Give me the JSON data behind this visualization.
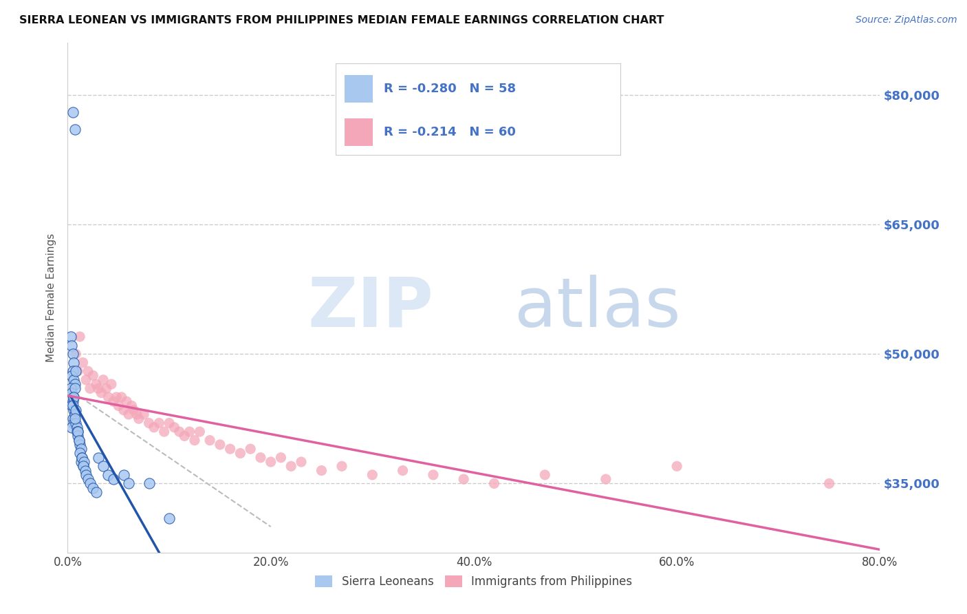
{
  "title": "SIERRA LEONEAN VS IMMIGRANTS FROM PHILIPPINES MEDIAN FEMALE EARNINGS CORRELATION CHART",
  "source": "Source: ZipAtlas.com",
  "ylabel": "Median Female Earnings",
  "xmin": 0.0,
  "xmax": 0.8,
  "ymin": 27000,
  "ymax": 86000,
  "yticks": [
    35000,
    50000,
    65000,
    80000
  ],
  "ytick_labels": [
    "$35,000",
    "$50,000",
    "$65,000",
    "$80,000"
  ],
  "xticks": [
    0.0,
    0.2,
    0.4,
    0.6,
    0.8
  ],
  "xtick_labels": [
    "0.0%",
    "20.0%",
    "40.0%",
    "60.0%",
    "80.0%"
  ],
  "sierra_color": "#a8c8f0",
  "philippines_color": "#f4a7b9",
  "sierra_line_color": "#2255aa",
  "philippines_line_color": "#e060a0",
  "sierra_R": -0.28,
  "sierra_N": 58,
  "philippines_R": -0.214,
  "philippines_N": 60,
  "legend_label_1": "Sierra Leoneans",
  "legend_label_2": "Immigrants from Philippines",
  "sierra_scatter_x": [
    0.005,
    0.007,
    0.003,
    0.004,
    0.005,
    0.006,
    0.005,
    0.004,
    0.006,
    0.007,
    0.003,
    0.004,
    0.006,
    0.005,
    0.004,
    0.006,
    0.007,
    0.005,
    0.006,
    0.004,
    0.008,
    0.007,
    0.006,
    0.005,
    0.007,
    0.008,
    0.009,
    0.01,
    0.008,
    0.007,
    0.009,
    0.01,
    0.011,
    0.012,
    0.01,
    0.011,
    0.013,
    0.012,
    0.014,
    0.013,
    0.015,
    0.014,
    0.016,
    0.015,
    0.017,
    0.018,
    0.02,
    0.022,
    0.025,
    0.028,
    0.03,
    0.035,
    0.04,
    0.045,
    0.055,
    0.06,
    0.08,
    0.1
  ],
  "sierra_scatter_y": [
    78000,
    76000,
    52000,
    51000,
    50000,
    49000,
    48000,
    47500,
    47000,
    46500,
    46000,
    45500,
    45000,
    44500,
    44000,
    43500,
    43000,
    42500,
    42000,
    41500,
    48000,
    46000,
    45000,
    44000,
    43000,
    42000,
    41500,
    41000,
    43500,
    42500,
    41000,
    40500,
    40000,
    39500,
    41000,
    40000,
    39000,
    38500,
    38000,
    37500,
    37000,
    38000,
    37500,
    37000,
    36500,
    36000,
    35500,
    35000,
    34500,
    34000,
    38000,
    37000,
    36000,
    35500,
    36000,
    35000,
    35000,
    31000
  ],
  "philippines_scatter_x": [
    0.005,
    0.008,
    0.01,
    0.012,
    0.015,
    0.018,
    0.02,
    0.022,
    0.025,
    0.028,
    0.03,
    0.033,
    0.035,
    0.038,
    0.04,
    0.043,
    0.045,
    0.048,
    0.05,
    0.053,
    0.055,
    0.058,
    0.06,
    0.063,
    0.065,
    0.068,
    0.07,
    0.075,
    0.08,
    0.085,
    0.09,
    0.095,
    0.1,
    0.105,
    0.11,
    0.115,
    0.12,
    0.125,
    0.13,
    0.14,
    0.15,
    0.16,
    0.17,
    0.18,
    0.19,
    0.2,
    0.21,
    0.22,
    0.23,
    0.25,
    0.27,
    0.3,
    0.33,
    0.36,
    0.39,
    0.42,
    0.47,
    0.53,
    0.6,
    0.75
  ],
  "philippines_scatter_y": [
    46000,
    50000,
    48000,
    52000,
    49000,
    47000,
    48000,
    46000,
    47500,
    46500,
    46000,
    45500,
    47000,
    46000,
    45000,
    46500,
    44500,
    45000,
    44000,
    45000,
    43500,
    44500,
    43000,
    44000,
    43500,
    43000,
    42500,
    43000,
    42000,
    41500,
    42000,
    41000,
    42000,
    41500,
    41000,
    40500,
    41000,
    40000,
    41000,
    40000,
    39500,
    39000,
    38500,
    39000,
    38000,
    37500,
    38000,
    37000,
    37500,
    36500,
    37000,
    36000,
    36500,
    36000,
    35500,
    35000,
    36000,
    35500,
    37000,
    35000
  ]
}
